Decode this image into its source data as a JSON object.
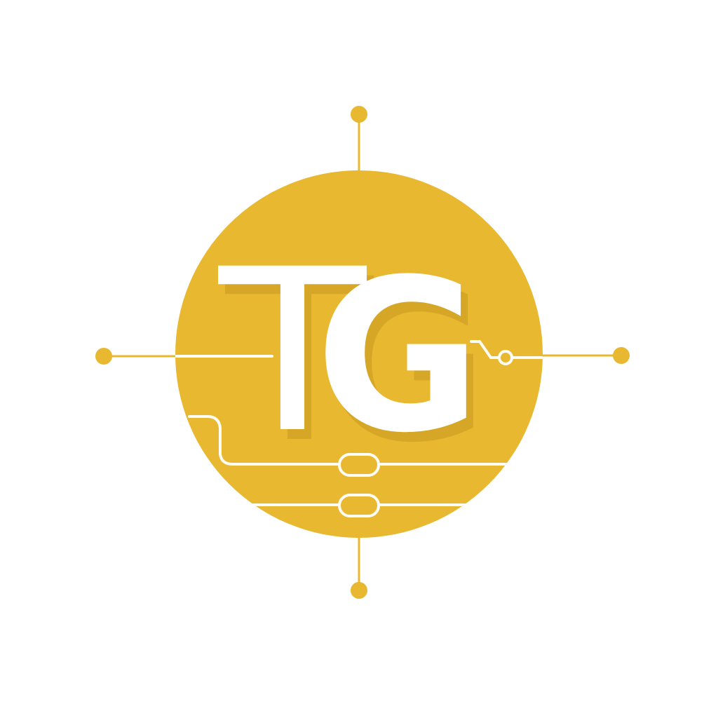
{
  "logo": {
    "monogram": "TG",
    "letter_1": "T",
    "letter_2": "G",
    "colors": {
      "primary": "#E8B830",
      "primary_dark": "#D4A428",
      "shadow": "#C99A1E",
      "letters": "#FFFFFF",
      "traces": "#FFFDF5",
      "background": "#FFFFFF"
    },
    "icon_names": [
      "circuit-trace-icon",
      "connector-node-icon"
    ]
  }
}
